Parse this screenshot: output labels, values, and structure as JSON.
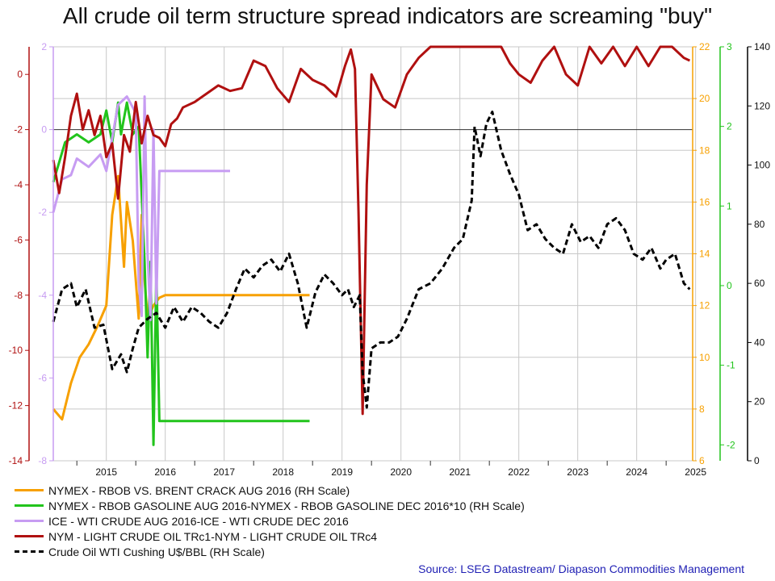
{
  "title": "All crude oil term structure spread indicators are screaming \"buy\"",
  "source": "Source: LSEG Datastream/ Diapason Commodities Management",
  "colors": {
    "orange": "#f7a000",
    "green": "#22c41c",
    "lavender": "#c79cf2",
    "darkred": "#b01010",
    "black": "#000000",
    "axis_left1": "#b01010",
    "axis_left2": "#c79cf2",
    "axis_right1": "#f7a000",
    "axis_right2": "#22c41c",
    "axis_right3": "#000000",
    "source_text": "#1f1fb4"
  },
  "chart_data": {
    "type": "line",
    "x_ticks": [
      "2015",
      "2016",
      "2017",
      "2018",
      "2019",
      "2020",
      "2021",
      "2022",
      "2023",
      "2024",
      "2025"
    ],
    "grid": true,
    "legend_position": "bottom",
    "axes": {
      "left1": {
        "color": "darkred",
        "ticks": [
          "0",
          "-2",
          "-4",
          "-6",
          "-8",
          "-10",
          "-12",
          "-14"
        ],
        "ylim": [
          -14,
          1
        ]
      },
      "left2": {
        "color": "lavender",
        "ticks": [
          "2",
          "0",
          "-2",
          "-4",
          "-6",
          "-8"
        ],
        "ylim": [
          -8,
          2
        ]
      },
      "right1": {
        "color": "orange",
        "ticks": [
          "22",
          "20",
          "18",
          "16",
          "14",
          "12",
          "10",
          "8",
          "6"
        ],
        "ylim": [
          6,
          22
        ]
      },
      "right2": {
        "color": "green",
        "ticks": [
          "3",
          "2",
          "1",
          "0",
          "-1",
          "-2"
        ],
        "ylim": [
          -2.2,
          3
        ]
      },
      "right3": {
        "color": "black",
        "ticks": [
          "140",
          "120",
          "100",
          "80",
          "60",
          "40",
          "20",
          "0"
        ],
        "ylim": [
          0,
          140
        ]
      }
    },
    "series": [
      {
        "name": "NYMEX - RBOB VS. BRENT CRACK AUG 2016 (RH Scale)",
        "axis": "right1",
        "color": "orange",
        "dash": false,
        "x": [
          2014.6,
          2014.75,
          2014.9,
          2015.05,
          2015.2,
          2015.35,
          2015.5,
          2015.6,
          2015.7,
          2015.8,
          2015.85,
          2015.95,
          2016.05,
          2016.1,
          2016.15,
          2016.2,
          2016.3,
          2016.4,
          2016.5,
          2016.7,
          2017.0,
          2017.5,
          2018.0,
          2018.5,
          2018.95
        ],
        "values": [
          8.0,
          7.6,
          9.0,
          10.0,
          10.5,
          11.2,
          12.0,
          15.5,
          17.0,
          13.5,
          16.0,
          14.5,
          11.5,
          15.5,
          13.0,
          11.5,
          12.0,
          12.3,
          12.4,
          12.4,
          12.4,
          12.4,
          12.4,
          12.4,
          12.4
        ]
      },
      {
        "name": "NYMEX - RBOB GASOLINE AUG 2016-NYMEX - RBOB GASOLINE DEC 2016*10 (RH Scale)",
        "axis": "right2",
        "color": "green",
        "dash": false,
        "x": [
          2014.6,
          2014.8,
          2015.0,
          2015.2,
          2015.4,
          2015.5,
          2015.6,
          2015.7,
          2015.75,
          2015.85,
          2015.95,
          2016.05,
          2016.15,
          2016.2,
          2016.25,
          2016.3,
          2016.35,
          2016.4,
          2016.45,
          2016.5,
          2017.0,
          2017.5,
          2018.0,
          2018.5,
          2018.95
        ],
        "values": [
          1.3,
          1.8,
          1.9,
          1.8,
          1.9,
          2.2,
          1.8,
          2.3,
          1.9,
          2.3,
          1.9,
          2.0,
          0.3,
          -0.9,
          0.3,
          -2.0,
          0.2,
          -1.7,
          -1.7,
          -1.7,
          -1.7,
          -1.7,
          -1.7,
          -1.7,
          -1.7
        ]
      },
      {
        "name": "ICE - WTI CRUDE AUG 2016-ICE - WTI CRUDE DEC 2016",
        "axis": "left2",
        "color": "lavender",
        "dash": false,
        "x": [
          2014.6,
          2014.75,
          2014.9,
          2015.0,
          2015.2,
          2015.4,
          2015.5,
          2015.6,
          2015.7,
          2015.85,
          2016.0,
          2016.05,
          2016.1,
          2016.15,
          2016.2,
          2016.25,
          2016.3,
          2016.35,
          2016.4,
          2017.0,
          2017.6
        ],
        "values": [
          -2.0,
          -1.2,
          -1.1,
          -0.7,
          -0.9,
          -0.6,
          -1.0,
          -0.2,
          0.6,
          0.8,
          0.4,
          -3.7,
          -4.5,
          0.8,
          -3.0,
          -4.6,
          0.0,
          -4.2,
          -1.0,
          -1.0,
          -1.0
        ]
      },
      {
        "name": "NYM - LIGHT CRUDE OIL TRc1-NYM - LIGHT CRUDE OIL TRc4",
        "axis": "left1",
        "color": "darkred",
        "dash": false,
        "x": [
          2014.6,
          2014.7,
          2014.8,
          2014.9,
          2015.0,
          2015.1,
          2015.2,
          2015.3,
          2015.4,
          2015.5,
          2015.6,
          2015.7,
          2015.8,
          2015.9,
          2016.0,
          2016.1,
          2016.2,
          2016.3,
          2016.4,
          2016.5,
          2016.6,
          2016.7,
          2016.8,
          2017.0,
          2017.2,
          2017.4,
          2017.6,
          2017.8,
          2018.0,
          2018.2,
          2018.4,
          2018.6,
          2018.8,
          2019.0,
          2019.2,
          2019.4,
          2019.55,
          2019.65,
          2019.72,
          2019.78,
          2019.85,
          2019.92,
          2020.0,
          2020.2,
          2020.4,
          2020.6,
          2020.8,
          2021.0,
          2021.3,
          2021.6,
          2021.9,
          2022.2,
          2022.35,
          2022.5,
          2022.7,
          2022.9,
          2023.1,
          2023.3,
          2023.5,
          2023.7,
          2023.9,
          2024.1,
          2024.3,
          2024.5,
          2024.7,
          2024.9,
          2025.1,
          2025.3,
          2025.4
        ],
        "values": [
          -3.1,
          -4.3,
          -3.0,
          -1.5,
          -0.7,
          -2.0,
          -1.3,
          -2.2,
          -1.5,
          -3.0,
          -2.5,
          -4.5,
          -2.2,
          -2.8,
          -1.0,
          -2.5,
          -1.5,
          -2.2,
          -2.3,
          -2.6,
          -1.8,
          -1.6,
          -1.2,
          -1.0,
          -0.7,
          -0.4,
          -0.6,
          -0.5,
          0.5,
          0.3,
          -0.5,
          -1.0,
          0.2,
          -0.2,
          -0.4,
          -0.8,
          0.3,
          0.9,
          0.2,
          -5.0,
          -12.3,
          -4.0,
          0.0,
          -0.9,
          -1.2,
          0.0,
          0.6,
          1.0,
          1.0,
          1.0,
          1.0,
          1.0,
          0.4,
          0.0,
          -0.3,
          0.5,
          1.0,
          0.0,
          -0.4,
          1.0,
          0.4,
          1.0,
          0.3,
          1.0,
          0.3,
          1.0,
          1.0,
          0.6,
          0.5
        ]
      },
      {
        "name": "Crude Oil WTI Cushing U$/BBL (RH Scale)",
        "axis": "right3",
        "color": "black",
        "dash": true,
        "x": [
          2014.6,
          2014.75,
          2014.9,
          2015.0,
          2015.15,
          2015.3,
          2015.45,
          2015.6,
          2015.75,
          2015.85,
          2015.95,
          2016.05,
          2016.2,
          2016.35,
          2016.5,
          2016.65,
          2016.8,
          2016.95,
          2017.1,
          2017.25,
          2017.4,
          2017.55,
          2017.7,
          2017.85,
          2018.0,
          2018.15,
          2018.3,
          2018.45,
          2018.6,
          2018.75,
          2018.9,
          2019.05,
          2019.2,
          2019.35,
          2019.5,
          2019.6,
          2019.7,
          2019.8,
          2019.85,
          2019.92,
          2020.0,
          2020.15,
          2020.3,
          2020.45,
          2020.6,
          2020.8,
          2021.0,
          2021.2,
          2021.4,
          2021.55,
          2021.7,
          2021.75,
          2021.85,
          2021.95,
          2022.05,
          2022.2,
          2022.35,
          2022.5,
          2022.65,
          2022.8,
          2022.95,
          2023.1,
          2023.25,
          2023.4,
          2023.55,
          2023.7,
          2023.85,
          2024.0,
          2024.15,
          2024.3,
          2024.45,
          2024.6,
          2024.75,
          2024.9,
          2025.0,
          2025.15,
          2025.3,
          2025.4
        ],
        "values": [
          47,
          58,
          60,
          52,
          58,
          45,
          46,
          31,
          36,
          30,
          38,
          45,
          48,
          50,
          45,
          52,
          47,
          52,
          50,
          47,
          45,
          50,
          58,
          65,
          62,
          66,
          68,
          64,
          70,
          60,
          45,
          57,
          63,
          60,
          56,
          58,
          52,
          56,
          30,
          18,
          38,
          40,
          40,
          42,
          48,
          58,
          60,
          65,
          72,
          75,
          88,
          113,
          103,
          114,
          118,
          105,
          97,
          90,
          78,
          80,
          75,
          72,
          70,
          80,
          74,
          76,
          72,
          80,
          82,
          78,
          70,
          68,
          72,
          65,
          68,
          70,
          60,
          58
        ]
      }
    ]
  }
}
